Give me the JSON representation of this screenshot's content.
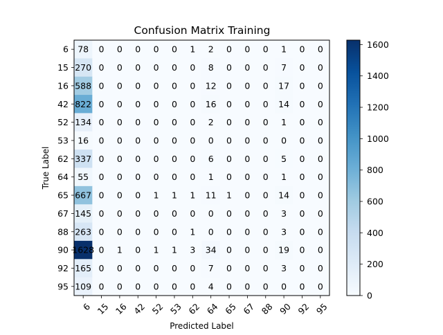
{
  "chart_data": {
    "type": "heatmap",
    "title": "Confusion Matrix Training",
    "xlabel": "Predicted Label",
    "ylabel": "True Label",
    "row_labels": [
      "6",
      "15",
      "16",
      "42",
      "52",
      "53",
      "62",
      "64",
      "65",
      "67",
      "88",
      "90",
      "92",
      "95"
    ],
    "col_labels": [
      "6",
      "15",
      "16",
      "42",
      "52",
      "53",
      "62",
      "64",
      "65",
      "67",
      "88",
      "90",
      "92",
      "95"
    ],
    "matrix": [
      [
        78,
        0,
        0,
        0,
        0,
        0,
        1,
        2,
        0,
        0,
        0,
        1,
        0,
        0
      ],
      [
        270,
        0,
        0,
        0,
        0,
        0,
        0,
        8,
        0,
        0,
        0,
        7,
        0,
        0
      ],
      [
        588,
        0,
        0,
        0,
        0,
        0,
        0,
        12,
        0,
        0,
        0,
        17,
        0,
        0
      ],
      [
        822,
        0,
        0,
        0,
        0,
        0,
        0,
        16,
        0,
        0,
        0,
        14,
        0,
        0
      ],
      [
        134,
        0,
        0,
        0,
        0,
        0,
        0,
        2,
        0,
        0,
        0,
        1,
        0,
        0
      ],
      [
        16,
        0,
        0,
        0,
        0,
        0,
        0,
        0,
        0,
        0,
        0,
        0,
        0,
        0
      ],
      [
        337,
        0,
        0,
        0,
        0,
        0,
        0,
        6,
        0,
        0,
        0,
        5,
        0,
        0
      ],
      [
        55,
        0,
        0,
        0,
        0,
        0,
        0,
        1,
        0,
        0,
        0,
        1,
        0,
        0
      ],
      [
        667,
        0,
        0,
        0,
        1,
        1,
        1,
        11,
        1,
        0,
        0,
        14,
        0,
        0
      ],
      [
        145,
        0,
        0,
        0,
        0,
        0,
        0,
        0,
        0,
        0,
        0,
        3,
        0,
        0
      ],
      [
        263,
        0,
        0,
        0,
        0,
        0,
        1,
        0,
        0,
        0,
        0,
        3,
        0,
        0
      ],
      [
        1628,
        0,
        1,
        0,
        1,
        1,
        3,
        34,
        0,
        0,
        0,
        19,
        0,
        0
      ],
      [
        165,
        0,
        0,
        0,
        0,
        0,
        0,
        7,
        0,
        0,
        0,
        3,
        0,
        0
      ],
      [
        109,
        0,
        0,
        0,
        0,
        0,
        0,
        4,
        0,
        0,
        0,
        0,
        0,
        0
      ]
    ],
    "colormap": "Blues",
    "vmin": 0,
    "vmax": 1628,
    "colorbar_ticks": [
      "0",
      "200",
      "400",
      "600",
      "800",
      "1000",
      "1200",
      "1400",
      "1600"
    ],
    "grid": false
  }
}
